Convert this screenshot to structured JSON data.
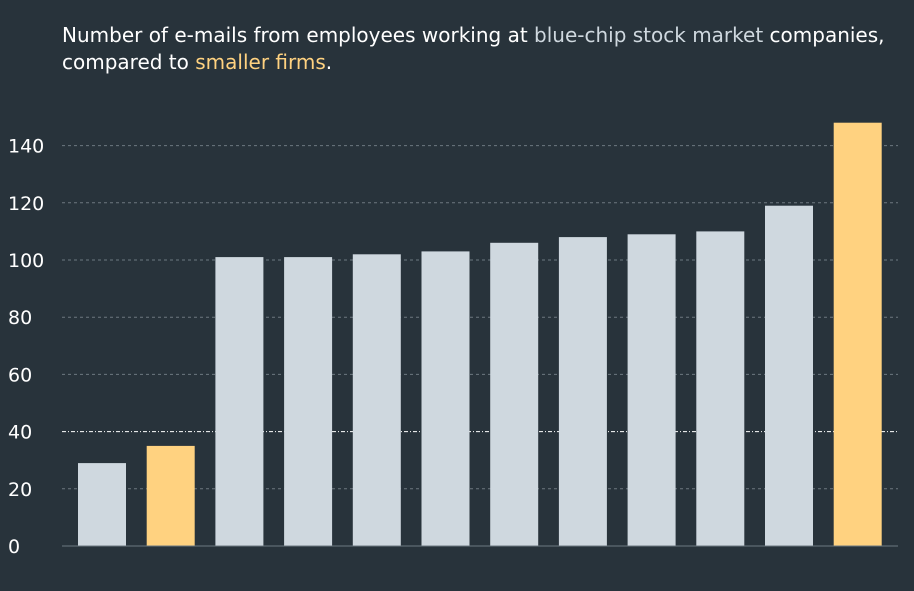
{
  "title": {
    "part1": "Number of e-mails from employees working at ",
    "highlight1": "blue-chip stock market",
    "part2": " companies,",
    "part3": "compared to ",
    "highlight2": "smaller firms",
    "part4": "."
  },
  "colors": {
    "background": "#28333b",
    "blue_chip": "#cfd8df",
    "smaller": "#ffd280",
    "text": "#ffffff"
  },
  "chart_data": {
    "type": "bar",
    "title": "Number of e-mails from employees working at blue-chip stock market companies, compared to smaller firms.",
    "xlabel": "",
    "ylabel": "",
    "ylim": [
      0,
      150
    ],
    "yticks": [
      "0",
      "20",
      "40",
      "60",
      "80",
      "100",
      "120",
      "140"
    ],
    "ytick_values": [
      0,
      20,
      40,
      60,
      80,
      100,
      120,
      140
    ],
    "reference_line": 40,
    "grid": true,
    "values": [
      29,
      35,
      101,
      101,
      102,
      103,
      106,
      108,
      109,
      110,
      119,
      148
    ],
    "groups": [
      "blue-chip",
      "smaller",
      "blue-chip",
      "blue-chip",
      "blue-chip",
      "blue-chip",
      "blue-chip",
      "blue-chip",
      "blue-chip",
      "blue-chip",
      "blue-chip",
      "smaller"
    ]
  }
}
